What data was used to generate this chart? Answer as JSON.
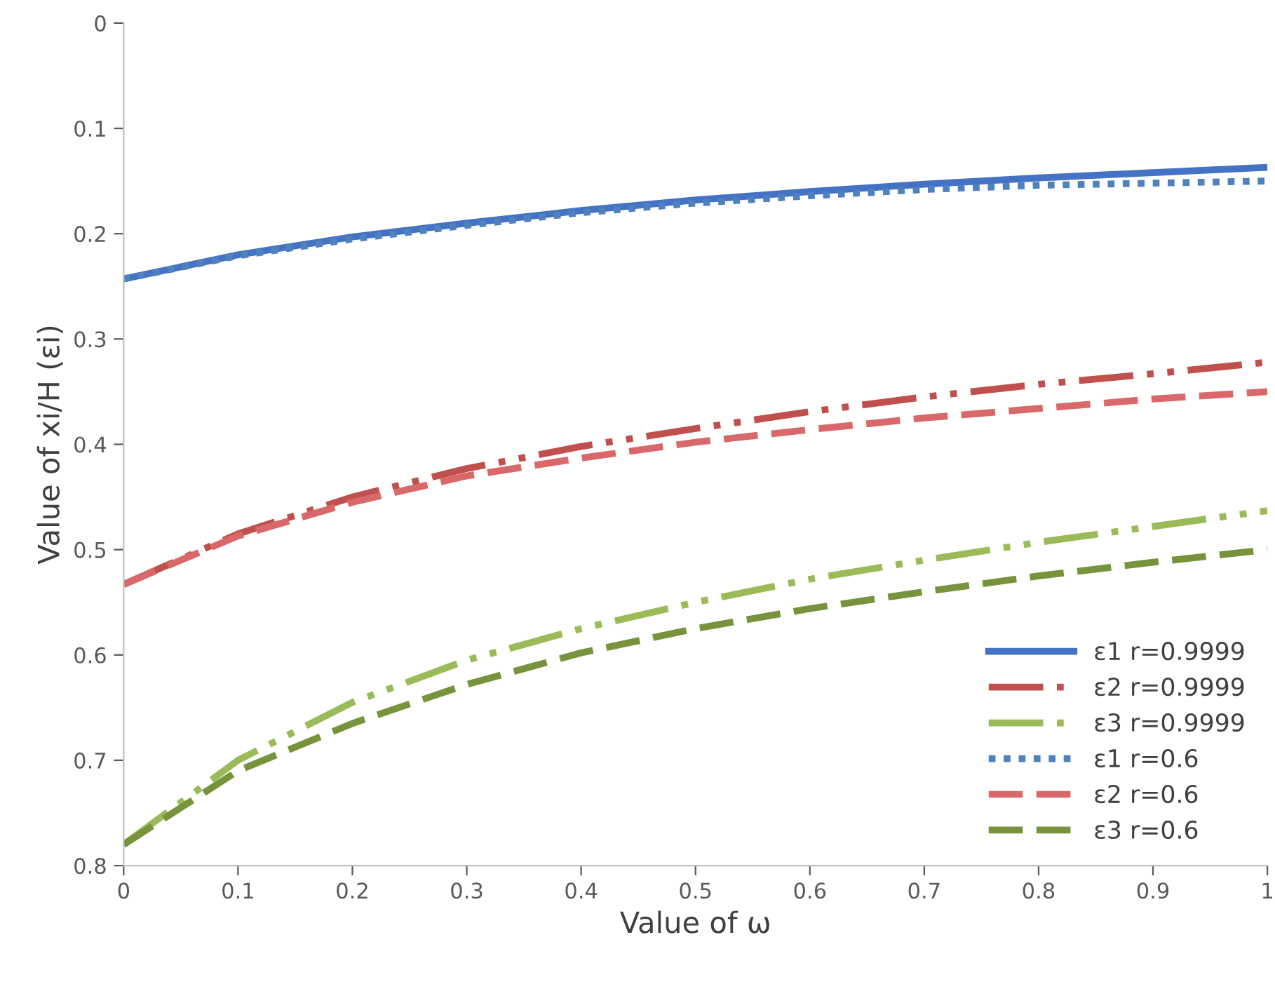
{
  "chart_data": {
    "type": "line",
    "xlabel": "Value of ω",
    "ylabel": "Value of xi/H (εi)",
    "xlim": [
      0,
      1
    ],
    "xticks": [
      0,
      0.1,
      0.2,
      0.3,
      0.4,
      0.5,
      0.6,
      0.7,
      0.8,
      0.9,
      1
    ],
    "ylim": [
      0.8,
      0
    ],
    "yticks": [
      0,
      0.1,
      0.2,
      0.3,
      0.4,
      0.5,
      0.6,
      0.7,
      0.8
    ],
    "grid": false,
    "legend": "bottom right",
    "marker": "none",
    "x": [
      0,
      0.1,
      0.2,
      0.3,
      0.4,
      0.5,
      0.6,
      0.7,
      0.8,
      0.9,
      1
    ],
    "series": [
      {
        "name": "ε1 r=0.9999",
        "color": "#4472c4",
        "line_style": "solid",
        "values": [
          0.243,
          0.22,
          0.203,
          0.19,
          0.178,
          0.168,
          0.16,
          0.153,
          0.147,
          0.142,
          0.137
        ]
      },
      {
        "name": "ε2 r=0.9999",
        "color": "#c0504d",
        "line_style": "dashdot",
        "values": [
          0.533,
          0.485,
          0.45,
          0.423,
          0.402,
          0.385,
          0.369,
          0.355,
          0.343,
          0.333,
          0.322
        ]
      },
      {
        "name": "ε3 r=0.9999",
        "color": "#9bbb59",
        "line_style": "dashdot",
        "values": [
          0.78,
          0.7,
          0.645,
          0.605,
          0.575,
          0.55,
          0.528,
          0.51,
          0.493,
          0.478,
          0.463
        ]
      },
      {
        "name": "ε1 r=0.6",
        "color": "#4f81bd",
        "line_style": "dotted",
        "values": [
          0.243,
          0.221,
          0.205,
          0.192,
          0.18,
          0.171,
          0.164,
          0.158,
          0.154,
          0.152,
          0.15
        ]
      },
      {
        "name": "ε2 r=0.6",
        "color": "#d9686a",
        "line_style": "dashed",
        "values": [
          0.533,
          0.487,
          0.455,
          0.43,
          0.413,
          0.398,
          0.386,
          0.375,
          0.366,
          0.357,
          0.35
        ]
      },
      {
        "name": "ε3 r=0.6",
        "color": "#77933c",
        "line_style": "dashed",
        "values": [
          0.78,
          0.71,
          0.665,
          0.628,
          0.598,
          0.575,
          0.556,
          0.54,
          0.525,
          0.512,
          0.5
        ]
      }
    ]
  }
}
